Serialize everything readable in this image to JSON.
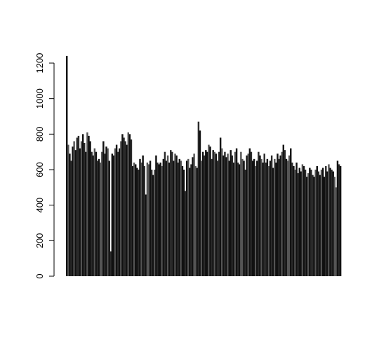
{
  "chart_data": {
    "type": "bar",
    "title": "",
    "xlabel": "",
    "ylabel": "",
    "ylim": [
      0,
      1250
    ],
    "yticks": [
      0,
      200,
      400,
      600,
      800,
      1000,
      1200
    ],
    "grid": false,
    "legend": "none",
    "colors": {
      "bar_dark": "#111111",
      "bar_mid": "#2a2a2a",
      "bar_light": "#555555",
      "axis": "#000000"
    },
    "values": [
      1240,
      740,
      690,
      650,
      730,
      760,
      710,
      780,
      790,
      720,
      760,
      800,
      750,
      700,
      810,
      790,
      760,
      700,
      680,
      720,
      700,
      650,
      660,
      640,
      700,
      760,
      690,
      730,
      720,
      650,
      140,
      690,
      680,
      720,
      740,
      700,
      720,
      760,
      800,
      780,
      760,
      740,
      810,
      800,
      770,
      620,
      640,
      630,
      610,
      600,
      660,
      640,
      680,
      620,
      460,
      640,
      630,
      650,
      600,
      570,
      600,
      680,
      640,
      630,
      640,
      620,
      660,
      700,
      650,
      680,
      640,
      710,
      700,
      650,
      690,
      680,
      640,
      660,
      650,
      620,
      600,
      480,
      650,
      660,
      610,
      630,
      670,
      690,
      620,
      610,
      870,
      820,
      650,
      700,
      680,
      710,
      700,
      740,
      730,
      660,
      710,
      700,
      690,
      650,
      700,
      780,
      720,
      680,
      700,
      670,
      690,
      650,
      710,
      680,
      640,
      700,
      720,
      640,
      630,
      700,
      660,
      650,
      600,
      680,
      690,
      720,
      700,
      650,
      660,
      620,
      650,
      700,
      680,
      660,
      640,
      690,
      640,
      660,
      620,
      650,
      680,
      610,
      660,
      640,
      690,
      660,
      680,
      700,
      740,
      710,
      660,
      650,
      680,
      720,
      640,
      620,
      600,
      640,
      580,
      610,
      590,
      630,
      620,
      600,
      560,
      580,
      610,
      600,
      570,
      560,
      600,
      620,
      590,
      570,
      600,
      610,
      560,
      620,
      590,
      630,
      610,
      600,
      590,
      560,
      500,
      650,
      630,
      620
    ]
  }
}
